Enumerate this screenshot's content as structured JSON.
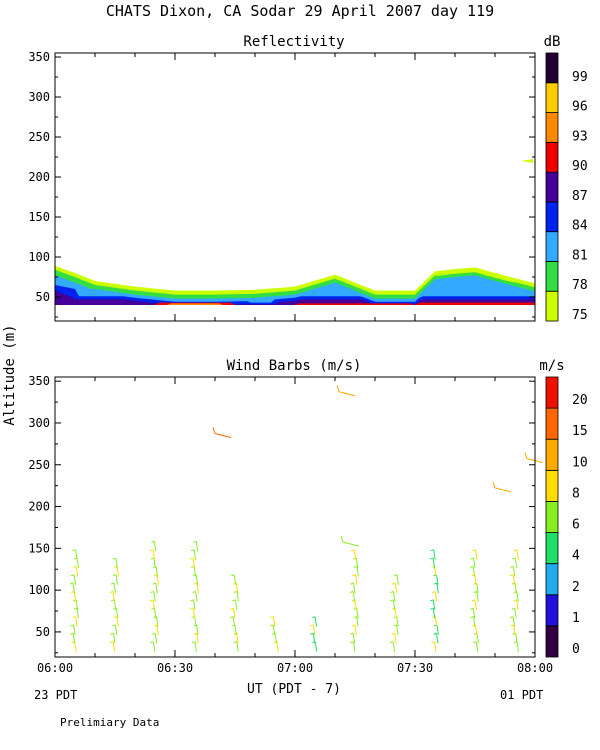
{
  "title": "CHATS Dixon, CA  Sodar  29 April 2007  day 119",
  "y_axis_label": "Altitude (m)",
  "x_axis_label": "UT  (PDT - 7)",
  "x_left_note": "23 PDT",
  "x_right_note": "01 PDT",
  "footer_note": "Prelimiary Data",
  "x_ticks": [
    "06:00",
    "06:30",
    "07:00",
    "07:30",
    "08:00"
  ],
  "colors": {
    "reflectivity": [
      "#ccff00",
      "#33dd44",
      "#33aaff",
      "#0022ee",
      "#440099",
      "#ee0000",
      "#ff8800",
      "#ffcc00",
      "#220033"
    ],
    "wind": [
      "#330044",
      "#2211dd",
      "#22aaee",
      "#22dd66",
      "#88ee22",
      "#ffdd00",
      "#ffaa00",
      "#ff6600",
      "#ee1100"
    ]
  },
  "chart_data": [
    {
      "type": "heatmap",
      "title": "Reflectivity",
      "colorbar_unit": "dB",
      "colorbar_labels": [
        "75",
        "78",
        "81",
        "84",
        "87",
        "90",
        "93",
        "96",
        "99"
      ],
      "x_ticks": [
        "06:00",
        "06:30",
        "07:00",
        "07:30",
        "08:00"
      ],
      "y_ticks": [
        50,
        100,
        150,
        200,
        250,
        300,
        350
      ],
      "ylim": [
        20,
        355
      ],
      "xlim_minutes_from_0600": [
        0,
        120
      ],
      "layer_top_m": [
        {
          "t": 0,
          "h": 89
        },
        {
          "t": 5,
          "h": 80
        },
        {
          "t": 10,
          "h": 70
        },
        {
          "t": 20,
          "h": 63
        },
        {
          "t": 30,
          "h": 58
        },
        {
          "t": 40,
          "h": 58
        },
        {
          "t": 50,
          "h": 59
        },
        {
          "t": 60,
          "h": 63
        },
        {
          "t": 70,
          "h": 78
        },
        {
          "t": 80,
          "h": 58
        },
        {
          "t": 90,
          "h": 58
        },
        {
          "t": 95,
          "h": 82
        },
        {
          "t": 100,
          "h": 85
        },
        {
          "t": 105,
          "h": 87
        },
        {
          "t": 110,
          "h": 80
        },
        {
          "t": 120,
          "h": 67
        }
      ],
      "features": [
        {
          "dB_class": "75",
          "time_min": 118,
          "altitude_m": 220
        }
      ]
    },
    {
      "type": "scatter",
      "title": "Wind Barbs (m/s)",
      "colorbar_unit": "m/s",
      "colorbar_labels": [
        "0",
        "1",
        "2",
        "4",
        "6",
        "8",
        "10",
        "15",
        "20"
      ],
      "x_ticks": [
        "06:00",
        "06:30",
        "07:00",
        "07:30",
        "08:00"
      ],
      "y_ticks": [
        50,
        100,
        150,
        200,
        250,
        300,
        350
      ],
      "ylim": [
        20,
        355
      ],
      "xlim_minutes_from_0600": [
        0,
        120
      ],
      "barb_times_min": [
        5,
        15,
        25,
        35,
        45,
        55,
        65,
        75,
        85,
        95,
        105,
        115
      ],
      "isolated_barbs": [
        {
          "time_min": 42,
          "altitude_m": 285,
          "speed_class": "15"
        },
        {
          "time_min": 73,
          "altitude_m": 335,
          "speed_class": "10"
        },
        {
          "time_min": 74,
          "altitude_m": 155,
          "speed_class": "6"
        },
        {
          "time_min": 112,
          "altitude_m": 220,
          "speed_class": "10"
        },
        {
          "time_min": 120,
          "altitude_m": 255,
          "speed_class": "10"
        }
      ]
    }
  ]
}
